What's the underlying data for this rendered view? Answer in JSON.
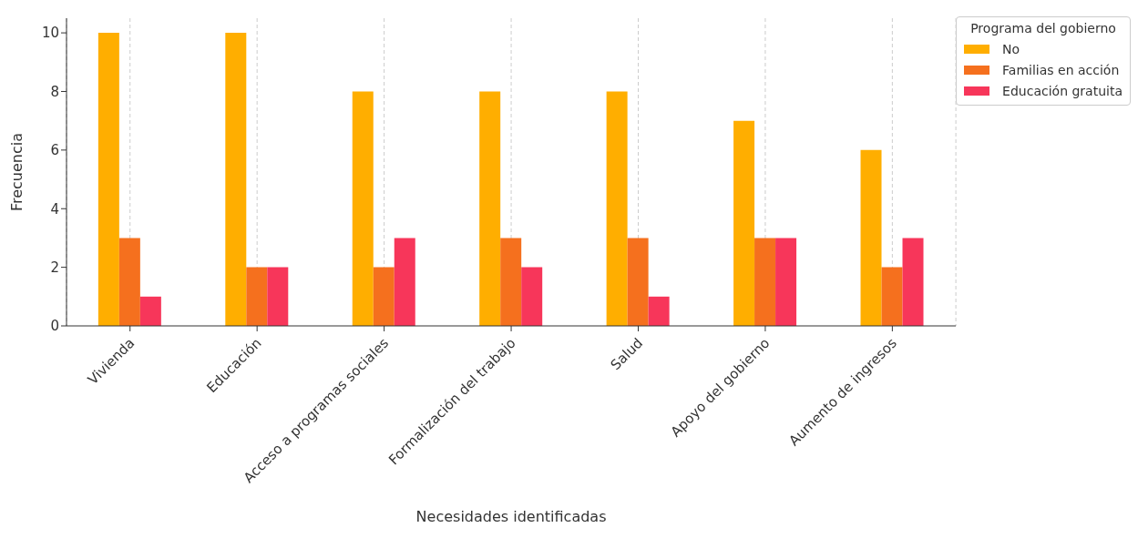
{
  "chart_data": {
    "type": "bar",
    "xlabel": "Necesidades identificadas",
    "ylabel": "Frecuencia",
    "legend_title": "Programa del gobierno",
    "categories": [
      "Vivienda",
      "Educación",
      "Acceso a programas sociales",
      "Formalización del trabajo",
      "Salud",
      "Apoyo del gobierno",
      "Aumento de ingresos"
    ],
    "series": [
      {
        "name": "No",
        "color": "#ffae00",
        "values": [
          10,
          10,
          8,
          8,
          8,
          7,
          6
        ]
      },
      {
        "name": "Familias en acción",
        "color": "#f5701e",
        "values": [
          3,
          2,
          2,
          3,
          3,
          3,
          2
        ]
      },
      {
        "name": "Educación gratuita",
        "color": "#f7365a",
        "values": [
          1,
          2,
          3,
          2,
          1,
          3,
          3
        ]
      }
    ],
    "ylim": [
      0,
      10.5
    ],
    "yticks": [
      0,
      2,
      4,
      6,
      8,
      10
    ],
    "grid": "x",
    "legend": "top right"
  }
}
